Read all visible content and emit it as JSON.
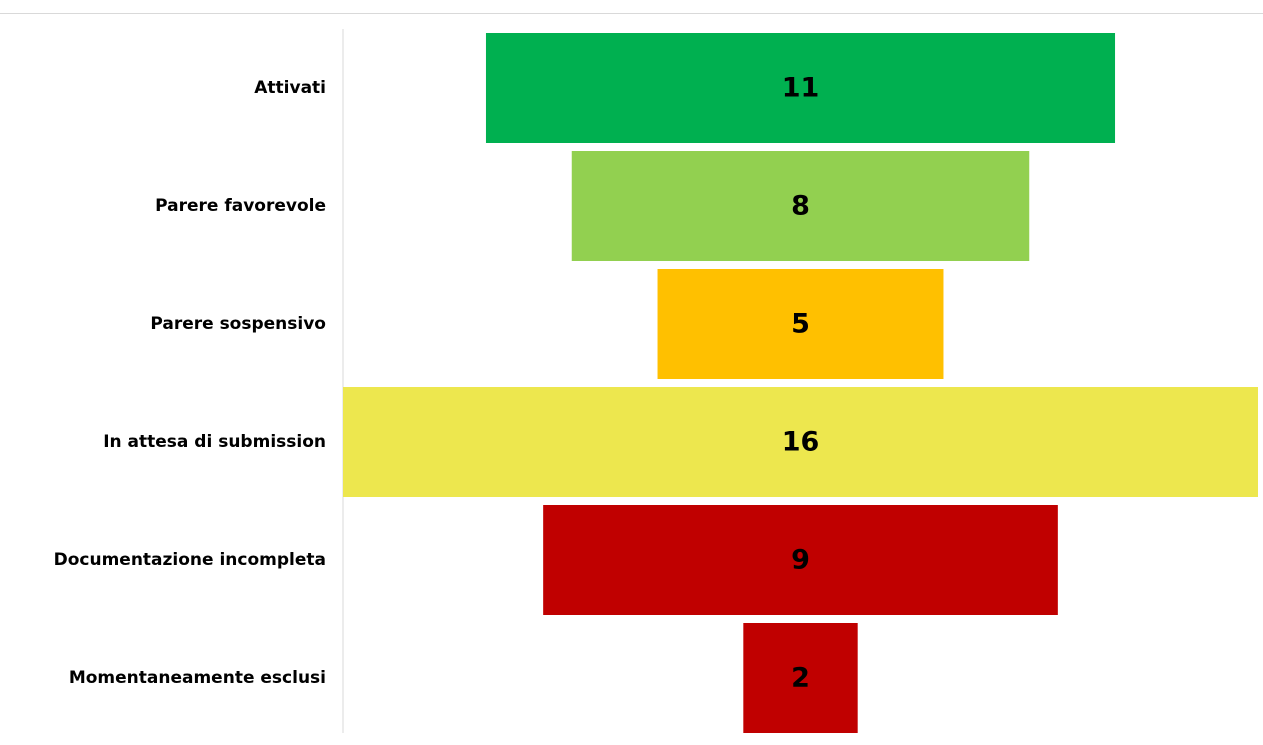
{
  "chart_data": {
    "type": "bar",
    "subtype": "funnel",
    "categories": [
      "Attivati",
      "Parere favorevole",
      "Parere sospensivo",
      "In attesa di submission",
      "Documentazione incompleta",
      "Momentaneamente esclusi"
    ],
    "values": [
      11,
      8,
      5,
      16,
      9,
      2
    ],
    "colors": [
      "#00b050",
      "#92d050",
      "#ffc000",
      "#ede74e",
      "#c00000",
      "#c00000"
    ],
    "title": "",
    "xlabel": "",
    "ylabel": "",
    "grid": false,
    "legend": "none",
    "data_labels": true
  }
}
